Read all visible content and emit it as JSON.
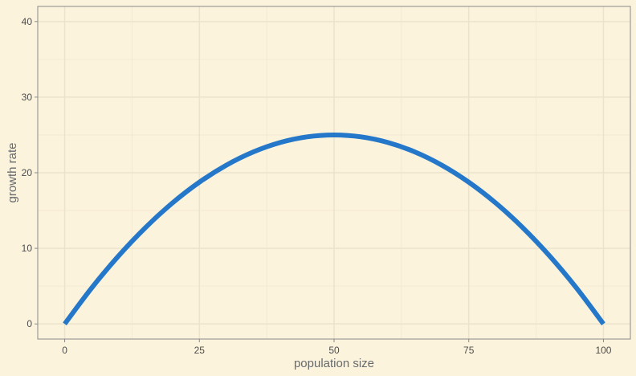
{
  "chart_data": {
    "type": "line",
    "xlabel": "population size",
    "ylabel": "growth rate",
    "xlim": [
      -5,
      105
    ],
    "ylim": [
      -2,
      42
    ],
    "x_ticks": [
      0,
      25,
      50,
      75,
      100
    ],
    "y_ticks": [
      0,
      10,
      20,
      30,
      40
    ],
    "grid": true,
    "series": [
      {
        "color": "#2477c9",
        "x": [
          0,
          5,
          10,
          15,
          20,
          25,
          30,
          35,
          40,
          45,
          50,
          55,
          60,
          65,
          70,
          75,
          80,
          85,
          90,
          95,
          100
        ],
        "y": [
          0,
          4.75,
          9,
          12.75,
          16,
          18.75,
          21,
          22.75,
          24,
          24.75,
          25,
          24.75,
          24,
          22.75,
          21,
          18.75,
          16,
          12.75,
          9,
          4.75,
          0
        ]
      }
    ]
  },
  "colors": {
    "background": "#fcf3dc",
    "grid_major": "#ece3cc",
    "grid_minor": "#f3ead4",
    "axis": "#8a8a8a",
    "line": "#2477c9"
  }
}
